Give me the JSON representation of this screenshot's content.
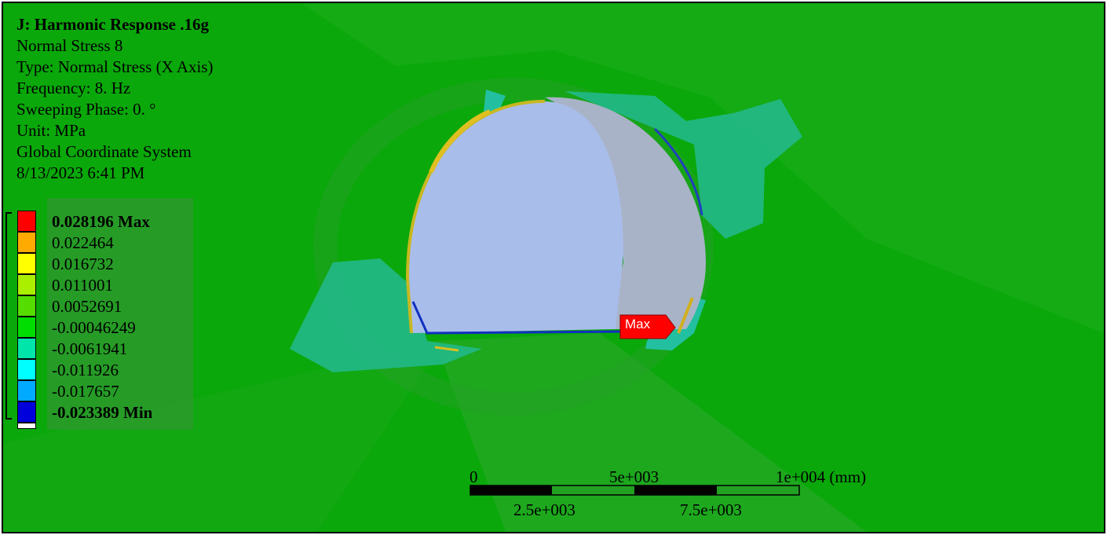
{
  "result": {
    "title": "J: Harmonic Response .16g",
    "name": "Normal Stress 8",
    "type": "Type: Normal Stress (X Axis)",
    "frequency": "Frequency: 8. Hz",
    "phase": "Sweeping Phase: 0. °",
    "unit": "Unit: MPa",
    "coordinate_system": "Global Coordinate System",
    "timestamp": "8/13/2023 6:41 PM"
  },
  "legend": {
    "entries": [
      {
        "label": "0.028196 Max",
        "color": "#ff0000",
        "bold": true
      },
      {
        "label": "0.022464",
        "color": "#ffaa00",
        "bold": false
      },
      {
        "label": "0.016732",
        "color": "#ffff00",
        "bold": false
      },
      {
        "label": "0.011001",
        "color": "#aaee00",
        "bold": false
      },
      {
        "label": "0.0052691",
        "color": "#55dd00",
        "bold": false
      },
      {
        "label": "-0.00046249",
        "color": "#00dd00",
        "bold": false
      },
      {
        "label": "-0.0061941",
        "color": "#00e6aa",
        "bold": false
      },
      {
        "label": "-0.011926",
        "color": "#00ffff",
        "bold": false
      },
      {
        "label": "-0.017657",
        "color": "#00aaff",
        "bold": false
      },
      {
        "label": "-0.023389 Min",
        "color": "#0000dd",
        "bold": true
      }
    ],
    "bottom_swatch_color": "#ffffff"
  },
  "probe": {
    "label": "Max",
    "color": "#ff0000"
  },
  "scale_bar": {
    "top_labels": [
      "0",
      "5e+003",
      "1e+004 (mm)"
    ],
    "bottom_labels": [
      "2.5e+003",
      "7.5e+003"
    ]
  },
  "colors": {
    "background": "#08a808",
    "tunnel_face": "#a8b8e8",
    "cyan_region": "#22b888"
  }
}
